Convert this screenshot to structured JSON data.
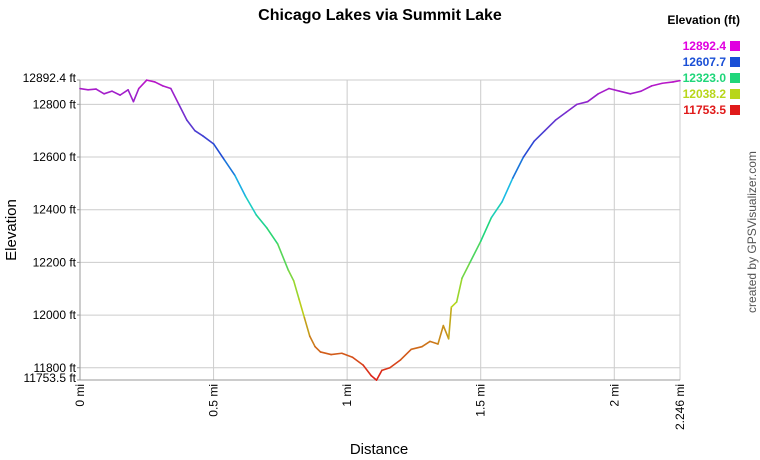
{
  "chart_data": {
    "type": "line",
    "title": "Chicago Lakes via Summit Lake",
    "xlabel": "Distance",
    "ylabel": "Elevation",
    "xlim": [
      0,
      2.246
    ],
    "ylim": [
      11753.5,
      12892.4
    ],
    "x_ticks": [
      {
        "value": 0,
        "label": "0 mi"
      },
      {
        "value": 0.5,
        "label": "0.5 mi"
      },
      {
        "value": 1,
        "label": "1 mi"
      },
      {
        "value": 1.5,
        "label": "1.5 mi"
      },
      {
        "value": 2,
        "label": "2 mi"
      },
      {
        "value": 2.246,
        "label": "2.246 mi"
      }
    ],
    "y_ticks": [
      {
        "value": 11753.5,
        "label": "11753.5 ft"
      },
      {
        "value": 11800,
        "label": "11800 ft"
      },
      {
        "value": 12000,
        "label": "12000 ft"
      },
      {
        "value": 12200,
        "label": "12200 ft"
      },
      {
        "value": 12400,
        "label": "12400 ft"
      },
      {
        "value": 12600,
        "label": "12600 ft"
      },
      {
        "value": 12800,
        "label": "12800 ft"
      },
      {
        "value": 12892.4,
        "label": "12892.4 ft"
      }
    ],
    "grid": true,
    "legend": {
      "title": "Elevation (ft)",
      "placement": "top-right",
      "entries": [
        {
          "label": "12892.4",
          "color": "#e000e0"
        },
        {
          "label": "12607.7",
          "color": "#1a4fd6"
        },
        {
          "label": "12323.0",
          "color": "#1fd67a"
        },
        {
          "label": "12038.2",
          "color": "#b8d61a"
        },
        {
          "label": "11753.5",
          "color": "#e01a1a"
        }
      ]
    },
    "series": [
      {
        "x": [
          0,
          0.03,
          0.06,
          0.09,
          0.12,
          0.15,
          0.18,
          0.2,
          0.22,
          0.25,
          0.28,
          0.31,
          0.34,
          0.37,
          0.4,
          0.43,
          0.46,
          0.5,
          0.54,
          0.58,
          0.62,
          0.66,
          0.7,
          0.74,
          0.78,
          0.8,
          0.82,
          0.84,
          0.86,
          0.88,
          0.9,
          0.94,
          0.98,
          1.02,
          1.06,
          1.09,
          1.11,
          1.13,
          1.16,
          1.2,
          1.24,
          1.28,
          1.31,
          1.34,
          1.36,
          1.38,
          1.39,
          1.41,
          1.43,
          1.46,
          1.5,
          1.54,
          1.58,
          1.62,
          1.66,
          1.7,
          1.74,
          1.78,
          1.82,
          1.86,
          1.9,
          1.94,
          1.98,
          2.02,
          2.06,
          2.1,
          2.14,
          2.18,
          2.22,
          2.246
        ],
        "y": [
          12860,
          12855,
          12858,
          12840,
          12850,
          12835,
          12855,
          12810,
          12860,
          12892,
          12885,
          12870,
          12860,
          12800,
          12740,
          12700,
          12680,
          12650,
          12590,
          12530,
          12450,
          12380,
          12330,
          12270,
          12170,
          12130,
          12060,
          11990,
          11920,
          11880,
          11860,
          11850,
          11855,
          11840,
          11810,
          11770,
          11753,
          11790,
          11800,
          11830,
          11870,
          11880,
          11900,
          11890,
          11960,
          11910,
          12030,
          12050,
          12140,
          12200,
          12280,
          12370,
          12430,
          12520,
          12600,
          12660,
          12700,
          12740,
          12770,
          12800,
          12810,
          12840,
          12860,
          12850,
          12840,
          12850,
          12870,
          12880,
          12885,
          12890
        ]
      }
    ]
  },
  "credit": "created by GPSVisualizer.com"
}
